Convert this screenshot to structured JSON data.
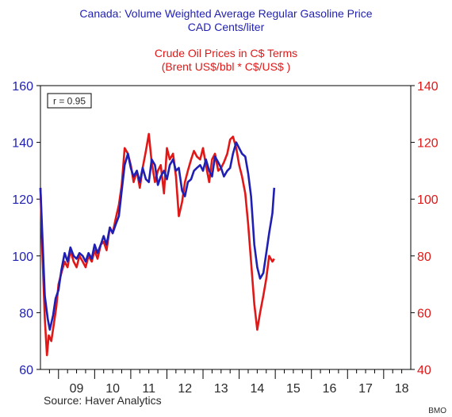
{
  "chart_data": {
    "type": "line",
    "title": "Canada: Volume Weighted Average Regular Gasoline Price",
    "title_unit": "CAD Cents/liter",
    "subtitle": "Crude Oil Prices in C$ Terms",
    "subtitle_note": "(Brent US$/bbl * C$/US$ )",
    "annotation": "r = 0.95",
    "source": "Source: Haver Analytics",
    "credit": "BMO",
    "x_ticks": [
      "09",
      "10",
      "11",
      "12",
      "13",
      "14",
      "15",
      "16",
      "17",
      "18"
    ],
    "x_range": [
      2008.5,
      2018.75
    ],
    "y_left": {
      "range": [
        60,
        160
      ],
      "ticks": [
        "60",
        "80",
        "100",
        "120",
        "140",
        "160"
      ],
      "color": "#1f1fb4"
    },
    "y_right": {
      "range": [
        40,
        140
      ],
      "ticks": [
        "40",
        "60",
        "80",
        "100",
        "120",
        "140"
      ],
      "color": "#e01818"
    },
    "grid": false,
    "series": [
      {
        "name": "Canada: Volume Weighted Average Regular Gasoline Price",
        "axis": "left",
        "color": "#1f1fb4",
        "x": [
          2008.5,
          2008.55,
          2008.62,
          2008.7,
          2008.76,
          2008.85,
          2008.92,
          2009.0,
          2009.08,
          2009.17,
          2009.25,
          2009.33,
          2009.42,
          2009.5,
          2009.58,
          2009.67,
          2009.75,
          2009.83,
          2009.92,
          2010.0,
          2010.08,
          2010.17,
          2010.25,
          2010.33,
          2010.42,
          2010.5,
          2010.58,
          2010.67,
          2010.75,
          2010.83,
          2010.92,
          2011.0,
          2011.08,
          2011.17,
          2011.25,
          2011.33,
          2011.42,
          2011.5,
          2011.58,
          2011.67,
          2011.75,
          2011.83,
          2011.92,
          2012.0,
          2012.08,
          2012.17,
          2012.25,
          2012.33,
          2012.42,
          2012.5,
          2012.58,
          2012.67,
          2012.75,
          2012.83,
          2012.92,
          2013.0,
          2013.08,
          2013.17,
          2013.25,
          2013.33,
          2013.42,
          2013.5,
          2013.58,
          2013.67,
          2013.75,
          2013.83,
          2013.92,
          2014.0,
          2014.08,
          2014.17,
          2014.25,
          2014.33,
          2014.42,
          2014.5,
          2014.58,
          2014.67,
          2014.75,
          2014.83,
          2014.92,
          2014.97
        ],
        "values": [
          124,
          108,
          86,
          78,
          74,
          79,
          85,
          88,
          95,
          101,
          98,
          103,
          100,
          99,
          101,
          100,
          98,
          101,
          99,
          104,
          101,
          104,
          107,
          104,
          110,
          108,
          111,
          114,
          123,
          132,
          136,
          131,
          128,
          130,
          126,
          131,
          127,
          126,
          134,
          132,
          125,
          128,
          130,
          127,
          132,
          134,
          130,
          131,
          123,
          121,
          126,
          127,
          130,
          131,
          132,
          130,
          134,
          130,
          128,
          135,
          133,
          131,
          128,
          130,
          131,
          136,
          140,
          138,
          136,
          135,
          129,
          121,
          104,
          96,
          92,
          94,
          101,
          108,
          115,
          124
        ]
      },
      {
        "name": "Crude Oil Prices in C$ Terms",
        "axis": "right",
        "color": "#e01818",
        "x": [
          2008.5,
          2008.55,
          2008.62,
          2008.68,
          2008.73,
          2008.8,
          2008.87,
          2008.94,
          2009.0,
          2009.08,
          2009.17,
          2009.25,
          2009.33,
          2009.42,
          2009.5,
          2009.58,
          2009.67,
          2009.75,
          2009.83,
          2009.92,
          2010.0,
          2010.08,
          2010.17,
          2010.25,
          2010.33,
          2010.42,
          2010.5,
          2010.58,
          2010.67,
          2010.75,
          2010.83,
          2010.92,
          2011.0,
          2011.08,
          2011.17,
          2011.25,
          2011.33,
          2011.42,
          2011.5,
          2011.58,
          2011.67,
          2011.75,
          2011.83,
          2011.92,
          2012.0,
          2012.08,
          2012.17,
          2012.25,
          2012.33,
          2012.42,
          2012.5,
          2012.58,
          2012.67,
          2012.75,
          2012.83,
          2012.92,
          2013.0,
          2013.08,
          2013.17,
          2013.25,
          2013.33,
          2013.42,
          2013.5,
          2013.58,
          2013.67,
          2013.75,
          2013.83,
          2013.92,
          2014.0,
          2014.08,
          2014.17,
          2014.25,
          2014.33,
          2014.42,
          2014.5,
          2014.58,
          2014.67,
          2014.75,
          2014.83,
          2014.92,
          2014.97
        ],
        "values": [
          104,
          82,
          58,
          45,
          52,
          50,
          56,
          62,
          70,
          74,
          78,
          76,
          82,
          78,
          76,
          80,
          78,
          76,
          80,
          78,
          82,
          79,
          84,
          85,
          82,
          90,
          88,
          93,
          98,
          105,
          118,
          116,
          112,
          106,
          110,
          104,
          111,
          117,
          123,
          113,
          106,
          110,
          112,
          102,
          118,
          114,
          116,
          108,
          94,
          99,
          106,
          110,
          114,
          117,
          115,
          114,
          118,
          112,
          106,
          114,
          116,
          110,
          111,
          113,
          116,
          121,
          122,
          118,
          112,
          108,
          102,
          91,
          78,
          63,
          54,
          60,
          66,
          72,
          80,
          78,
          79
        ]
      }
    ]
  }
}
